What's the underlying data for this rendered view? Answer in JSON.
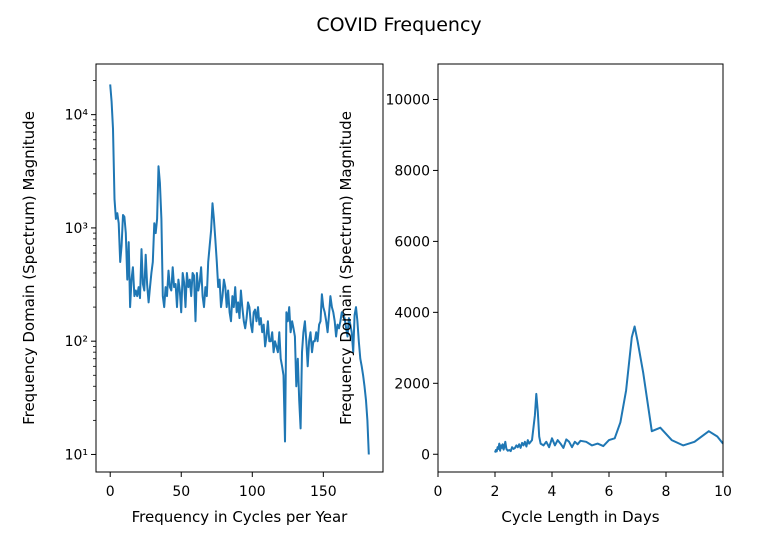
{
  "figure": {
    "title": "COVID Frequency"
  },
  "chart_data": [
    {
      "type": "line",
      "xlabel": "Frequency in Cycles per Year",
      "ylabel": "Frequency Domain (Spectrum) Magnitude",
      "xlim": [
        -10,
        192
      ],
      "ylim": [
        7,
        28000
      ],
      "yscale": "log",
      "xticks": [
        0,
        50,
        100,
        150
      ],
      "xtick_labels": [
        "0",
        "50",
        "100",
        "150"
      ],
      "yticks": [
        10,
        100,
        1000,
        10000
      ],
      "ytick_labels": [
        "10¹",
        "10²",
        "10³",
        "10⁴"
      ],
      "grid": false,
      "series": [
        {
          "color": "#1f77b4",
          "x": [
            0,
            1,
            2,
            3,
            4,
            5,
            6,
            7,
            8,
            9,
            10,
            11,
            12,
            13,
            14,
            15,
            16,
            17,
            18,
            19,
            20,
            21,
            22,
            23,
            24,
            25,
            26,
            27,
            28,
            29,
            30,
            31,
            32,
            33,
            34,
            35,
            36,
            37,
            38,
            39,
            40,
            41,
            42,
            43,
            44,
            45,
            46,
            47,
            48,
            49,
            50,
            51,
            52,
            53,
            54,
            55,
            56,
            57,
            58,
            59,
            60,
            61,
            62,
            63,
            64,
            65,
            66,
            67,
            68,
            69,
            70,
            71,
            72,
            73,
            74,
            75,
            76,
            77,
            78,
            79,
            80,
            81,
            82,
            83,
            84,
            85,
            86,
            87,
            88,
            89,
            90,
            91,
            92,
            93,
            94,
            95,
            96,
            97,
            98,
            99,
            100,
            101,
            102,
            103,
            104,
            105,
            106,
            107,
            108,
            109,
            110,
            111,
            112,
            113,
            114,
            115,
            116,
            117,
            118,
            119,
            120,
            121,
            122,
            123,
            124,
            125,
            126,
            127,
            128,
            129,
            130,
            131,
            132,
            133,
            134,
            135,
            136,
            137,
            138,
            139,
            140,
            141,
            142,
            143,
            144,
            145,
            146,
            147,
            148,
            149,
            150,
            151,
            152,
            153,
            154,
            155,
            156,
            157,
            158,
            159,
            160,
            161,
            162,
            163,
            164,
            165,
            166,
            167,
            168,
            169,
            170,
            171,
            172,
            173,
            174,
            175,
            176,
            177,
            178,
            179,
            180,
            181,
            182
          ],
          "y": [
            18500,
            13000,
            7500,
            1800,
            1200,
            1350,
            1100,
            500,
            700,
            1300,
            1250,
            900,
            350,
            750,
            200,
            350,
            450,
            250,
            280,
            250,
            300,
            240,
            650,
            320,
            280,
            580,
            320,
            220,
            300,
            400,
            500,
            1100,
            900,
            1200,
            3500,
            2500,
            1200,
            250,
            200,
            300,
            250,
            420,
            300,
            280,
            450,
            300,
            320,
            200,
            350,
            280,
            180,
            400,
            330,
            200,
            400,
            300,
            350,
            250,
            400,
            380,
            150,
            400,
            280,
            330,
            450,
            250,
            200,
            300,
            250,
            500,
            700,
            950,
            1650,
            1200,
            800,
            500,
            300,
            350,
            200,
            250,
            350,
            300,
            200,
            280,
            180,
            150,
            250,
            200,
            300,
            180,
            220,
            160,
            280,
            200,
            150,
            130,
            160,
            220,
            200,
            140,
            120,
            180,
            190,
            150,
            200,
            140,
            160,
            120,
            140,
            90,
            110,
            150,
            100,
            100,
            120,
            80,
            100,
            90,
            80,
            120,
            70,
            60,
            50,
            13,
            180,
            150,
            200,
            120,
            150,
            130,
            110,
            40,
            70,
            30,
            17,
            80,
            120,
            150,
            100,
            60,
            100,
            120,
            80,
            100,
            100,
            120,
            100,
            140,
            150,
            260,
            200,
            180,
            150,
            120,
            170,
            250,
            200,
            180,
            150,
            110,
            140,
            130,
            150,
            180,
            170,
            160,
            130,
            110,
            160,
            140,
            120,
            80,
            170,
            200,
            150,
            100,
            70,
            60,
            50,
            40,
            30,
            20,
            10
          ]
        }
      ]
    },
    {
      "type": "line",
      "xlabel": "Cycle Length in Days",
      "ylabel": "Frequency Domain (Spectrum) Magnitude",
      "xlim": [
        0,
        10
      ],
      "ylim": [
        -500,
        11000
      ],
      "yscale": "linear",
      "xticks": [
        0,
        2,
        4,
        6,
        8,
        10
      ],
      "xtick_labels": [
        "0",
        "2",
        "4",
        "6",
        "8",
        "10"
      ],
      "yticks": [
        0,
        2000,
        4000,
        6000,
        8000,
        10000
      ],
      "ytick_labels": [
        "0",
        "2000",
        "4000",
        "6000",
        "8000",
        "10000"
      ],
      "grid": false,
      "series": [
        {
          "color": "#1f77b4",
          "x": [
            2.0,
            2.03,
            2.06,
            2.09,
            2.12,
            2.15,
            2.18,
            2.21,
            2.24,
            2.27,
            2.3,
            2.33,
            2.36,
            2.4,
            2.45,
            2.5,
            2.55,
            2.6,
            2.65,
            2.7,
            2.75,
            2.8,
            2.85,
            2.9,
            2.95,
            3.0,
            3.05,
            3.1,
            3.15,
            3.2,
            3.3,
            3.4,
            3.45,
            3.5,
            3.55,
            3.6,
            3.7,
            3.8,
            3.9,
            4.0,
            4.1,
            4.2,
            4.3,
            4.4,
            4.5,
            4.6,
            4.7,
            4.8,
            4.9,
            5.0,
            5.2,
            5.4,
            5.6,
            5.8,
            6.0,
            6.2,
            6.4,
            6.6,
            6.8,
            6.9,
            7.0,
            7.2,
            7.5,
            7.8,
            8.2,
            8.6,
            9.0,
            9.5,
            9.8,
            10.0
          ],
          "y": [
            50,
            120,
            80,
            200,
            150,
            300,
            100,
            250,
            180,
            280,
            130,
            220,
            350,
            150,
            100,
            120,
            90,
            200,
            150,
            180,
            250,
            200,
            280,
            180,
            320,
            250,
            350,
            220,
            400,
            300,
            400,
            1100,
            1700,
            1200,
            500,
            300,
            250,
            350,
            200,
            450,
            250,
            400,
            300,
            180,
            420,
            350,
            200,
            350,
            280,
            380,
            350,
            250,
            300,
            230,
            400,
            450,
            900,
            1800,
            3300,
            3600,
            3200,
            2300,
            650,
            750,
            400,
            250,
            350,
            650,
            500,
            300
          ]
        }
      ]
    }
  ]
}
